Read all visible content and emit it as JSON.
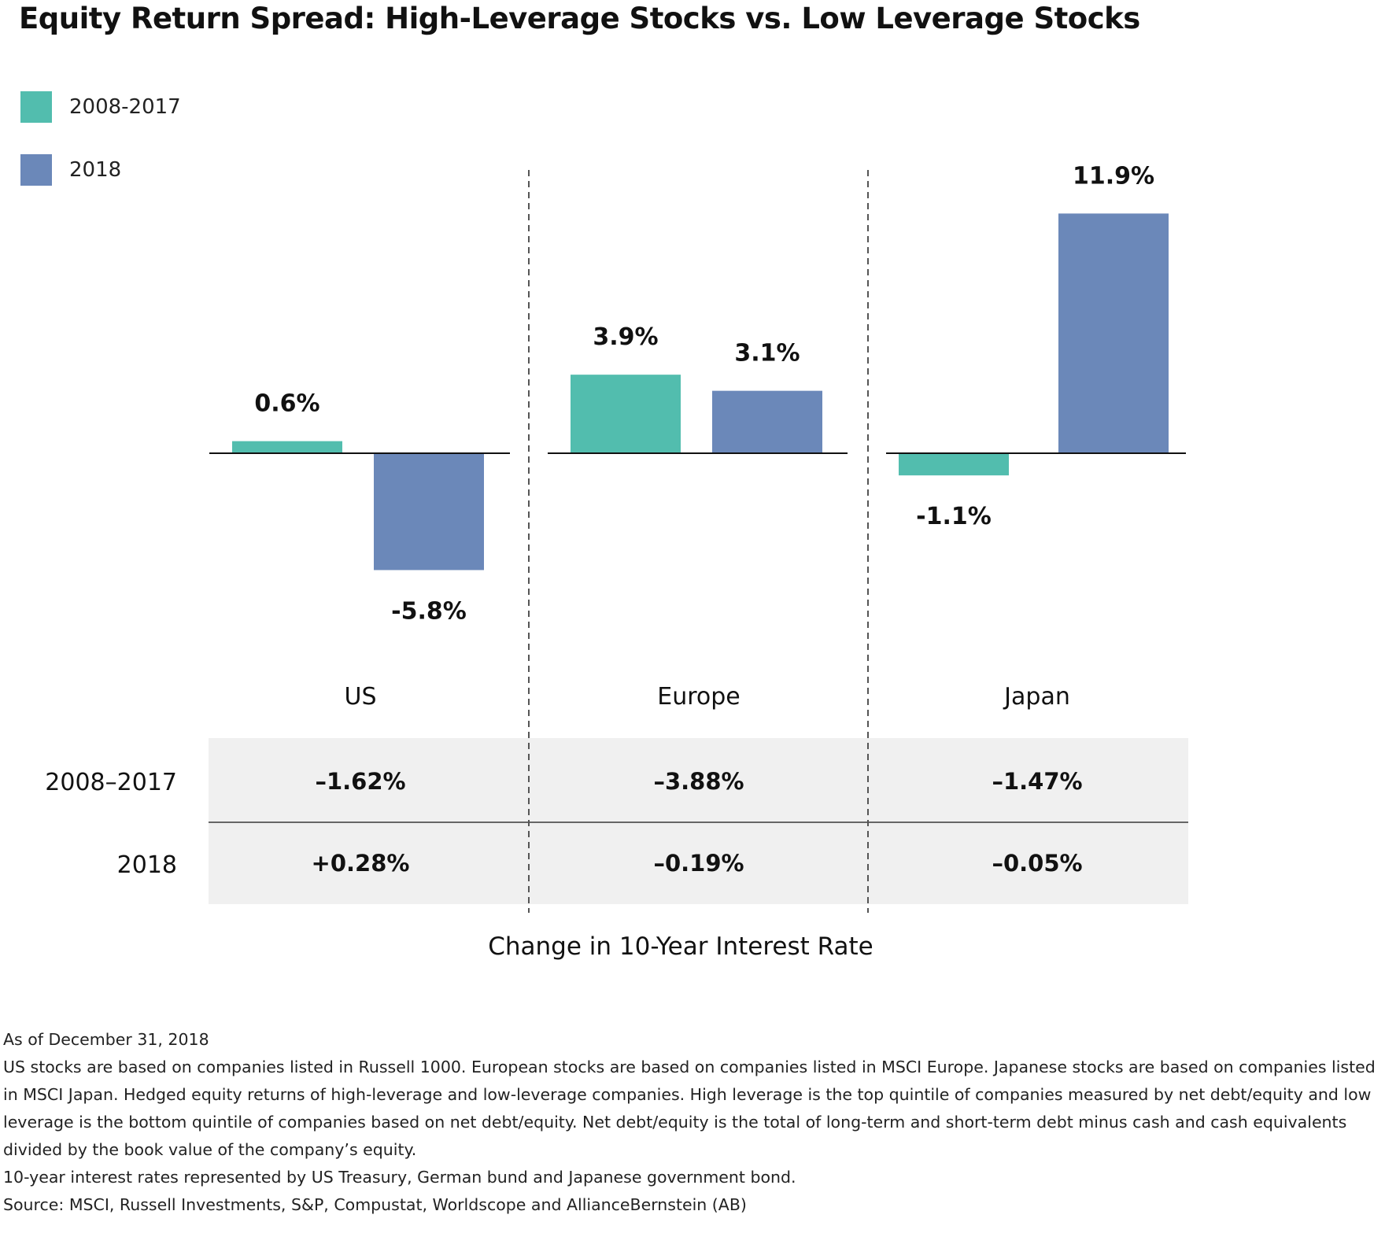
{
  "title": "Equity Return Spread: High-Leverage Stocks vs. Low Leverage Stocks",
  "legend": [
    {
      "label": "2008-2017",
      "color": "#52bdae"
    },
    {
      "label": "2018",
      "color": "#6b88b9"
    }
  ],
  "chart_data": {
    "type": "bar",
    "title": "Equity Return Spread: High-Leverage Stocks vs. Low Leverage Stocks",
    "categories": [
      "US",
      "Europe",
      "Japan"
    ],
    "series": [
      {
        "name": "2008-2017",
        "color": "#52bdae",
        "values": [
          0.6,
          3.9,
          -1.1
        ],
        "labels": [
          "0.6%",
          "3.9%",
          "-1.1%"
        ]
      },
      {
        "name": "2018",
        "color": "#6b88b9",
        "values": [
          -5.8,
          3.1,
          11.9
        ],
        "labels": [
          "-5.8%",
          "3.1%",
          "11.9%"
        ]
      }
    ],
    "unit": "%",
    "grid": false,
    "legend_position": "top-left",
    "xlabel": "Change in 10-Year Interest Rate"
  },
  "table": {
    "rows": [
      {
        "label": "2008–2017",
        "values": [
          "–1.62%",
          "–3.88%",
          "–1.47%"
        ]
      },
      {
        "label": "2018",
        "values": [
          "+0.28%",
          "–0.19%",
          "–0.05%"
        ]
      }
    ]
  },
  "notes": [
    "As of December 31, 2018",
    "US stocks are based on companies listed in Russell 1000. European stocks are based on companies listed in MSCI Europe. Japanese stocks are based on companies listed in MSCI Japan. Hedged equity returns of high-leverage and low-leverage companies. High leverage is the top quintile of companies measured by net debt/equity and low leverage is the bottom quintile of companies based on net debt/equity. Net debt/equity is the total of long-term and short-term debt minus cash and cash equivalents divided by the book value of the company’s equity.",
    "10-year interest rates represented by US Treasury, German bund and Japanese government bond.",
    "Source: MSCI, Russell Investments, S&P, Compustat, Worldscope and AllianceBernstein (AB)"
  ]
}
